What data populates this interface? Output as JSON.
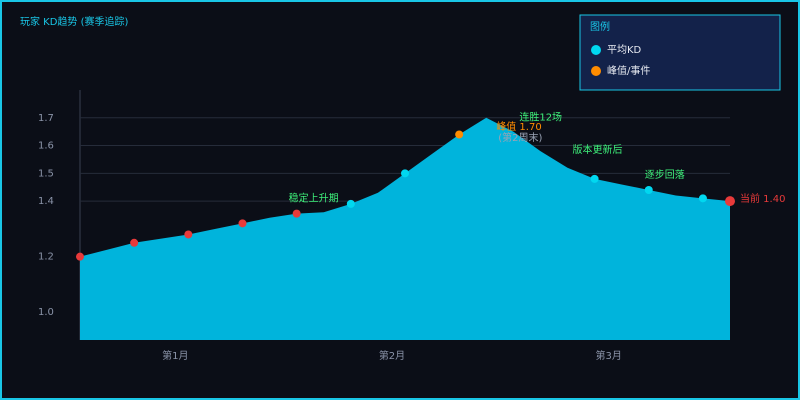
{
  "chart_data": {
    "type": "area",
    "title": "玩家 KD趋势 (赛季追踪)",
    "values": [
      1.2,
      1.225,
      1.25,
      1.265,
      1.28,
      1.3,
      1.32,
      1.34,
      1.355,
      1.36,
      1.39,
      1.43,
      1.5,
      1.57,
      1.64,
      1.7,
      1.65,
      1.58,
      1.52,
      1.48,
      1.46,
      1.44,
      1.42,
      1.41,
      1.4
    ],
    "x_labels": [
      "第1月",
      "第2月",
      "第3月"
    ],
    "ylim": [
      0.9,
      1.8
    ],
    "yticks": [
      {
        "value": 1,
        "label": "1.0"
      },
      1.2,
      1.4,
      1.5,
      1.6,
      1.7
    ],
    "grid": true,
    "color": "#00b4dc",
    "legend": {
      "title": "图例",
      "position": "upper right",
      "entries": [
        {
          "name": "平均KD",
          "color": "#00d8f0"
        },
        {
          "name": "峰值/事件",
          "color": "#ff8c00"
        }
      ]
    },
    "marker_groups": [
      {
        "color": "#e83a3a",
        "points": [
          0,
          2,
          4,
          6,
          8
        ]
      },
      {
        "color": "#00d8f0",
        "points": [
          10,
          12,
          19,
          21,
          23
        ]
      },
      {
        "color": "#ff8c00",
        "points": [
          14
        ]
      }
    ],
    "annotations": [
      {
        "text": "稳定上升期",
        "point": 8,
        "color": "#3ef07a"
      },
      {
        "text": "连胜12场",
        "point": 16,
        "color": "#3ef07a"
      },
      {
        "text": "峰值 1.70",
        "point": 15,
        "color": "#ff8c00"
      },
      {
        "text": "(第2周末)",
        "point": 15,
        "color": "#9aa3b5"
      },
      {
        "text": "版本更新后",
        "point": 18,
        "color": "#3ef07a"
      },
      {
        "text": "逐步回落",
        "point": 21,
        "color": "#3ef07a"
      },
      {
        "text": "当前 1.40",
        "point": 24,
        "color": "#e83a3a"
      }
    ]
  }
}
